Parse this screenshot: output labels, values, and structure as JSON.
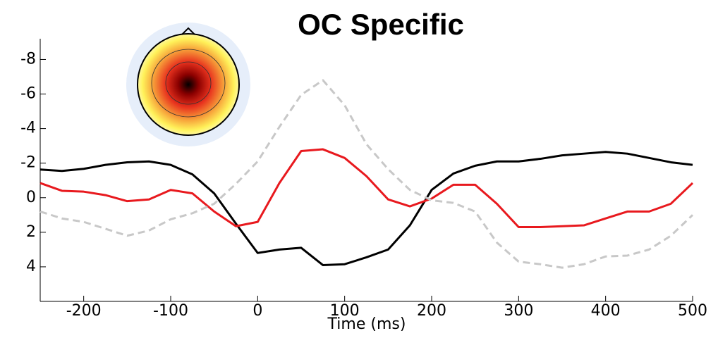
{
  "chart_data": {
    "type": "line",
    "title": "OC Specific",
    "x_label": "Time (ms)",
    "x": [
      -250,
      -225,
      -200,
      -175,
      -150,
      -125,
      -100,
      -75,
      -50,
      -25,
      0,
      25,
      50,
      75,
      100,
      125,
      150,
      175,
      200,
      225,
      250,
      275,
      300,
      325,
      350,
      375,
      400,
      425,
      450,
      475,
      500
    ],
    "series": [
      {
        "color": "#000000",
        "style": "solid",
        "values": [
          -1.63,
          -1.55,
          -1.67,
          -1.9,
          -2.05,
          -2.1,
          -1.9,
          -1.35,
          -0.25,
          1.5,
          3.2,
          3.0,
          2.9,
          3.9,
          3.85,
          3.45,
          3.0,
          1.6,
          -0.45,
          -1.4,
          -1.85,
          -2.1,
          -2.1,
          -2.25,
          -2.45,
          -2.55,
          -2.65,
          -2.55,
          -2.3,
          -2.05,
          -1.9
        ]
      },
      {
        "color": "#e8191e",
        "style": "solid",
        "values": [
          -0.85,
          -0.4,
          -0.35,
          -0.15,
          0.2,
          0.1,
          -0.45,
          -0.25,
          0.8,
          1.65,
          1.4,
          -0.85,
          -2.7,
          -2.8,
          -2.3,
          -1.25,
          0.1,
          0.5,
          0.05,
          -0.75,
          -0.75,
          0.35,
          1.7,
          1.7,
          1.65,
          1.6,
          1.2,
          0.8,
          0.8,
          0.35,
          -0.85
        ]
      },
      {
        "color": "#c8c8c8",
        "style": "dashed",
        "values": [
          0.8,
          1.2,
          1.4,
          1.8,
          2.2,
          1.9,
          1.25,
          0.9,
          0.35,
          -0.8,
          -2.1,
          -4.1,
          -5.95,
          -6.8,
          -5.35,
          -3.1,
          -1.65,
          -0.45,
          0.15,
          0.3,
          0.8,
          2.6,
          3.7,
          3.85,
          4.05,
          3.85,
          3.4,
          3.35,
          3.0,
          2.2,
          1.0
        ]
      }
    ],
    "xlim": [
      -250,
      500
    ],
    "xticks": [
      -200,
      -100,
      0,
      100,
      200,
      300,
      400,
      500
    ],
    "ylim": [
      6,
      -9.2
    ],
    "yticks": [
      -8,
      -6,
      -4,
      -2,
      0,
      2,
      4
    ]
  }
}
